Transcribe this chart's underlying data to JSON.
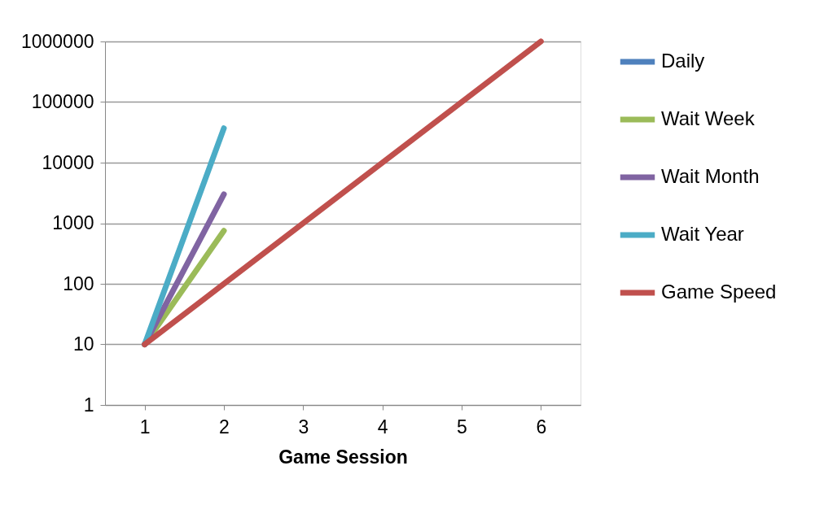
{
  "chart_data": {
    "type": "line",
    "xlabel": "Game Session",
    "categories": [
      "1",
      "2",
      "3",
      "4",
      "5",
      "6"
    ],
    "series": [
      {
        "name": "Daily",
        "color": "#4f81bd",
        "values": [
          null,
          null,
          null,
          null,
          null,
          null
        ]
      },
      {
        "name": "Wait Week",
        "color": "#9bbb59",
        "values": [
          10,
          750,
          null,
          null,
          null,
          null
        ]
      },
      {
        "name": "Wait Month",
        "color": "#8064a2",
        "values": [
          10,
          3000,
          null,
          null,
          null,
          null
        ]
      },
      {
        "name": "Wait Year",
        "color": "#4bacc6",
        "values": [
          10,
          37000,
          null,
          null,
          null,
          null
        ]
      },
      {
        "name": "Game Speed",
        "color": "#c0504d",
        "values": [
          10,
          100,
          1000,
          10000,
          100000,
          1000000
        ]
      }
    ],
    "log": "y",
    "ylim": [
      1,
      1000000
    ],
    "yticks": [
      1,
      10,
      100,
      1000,
      10000,
      100000,
      1000000
    ],
    "grid": "y",
    "legend": "right",
    "marker": "none",
    "line_style": "solid"
  }
}
